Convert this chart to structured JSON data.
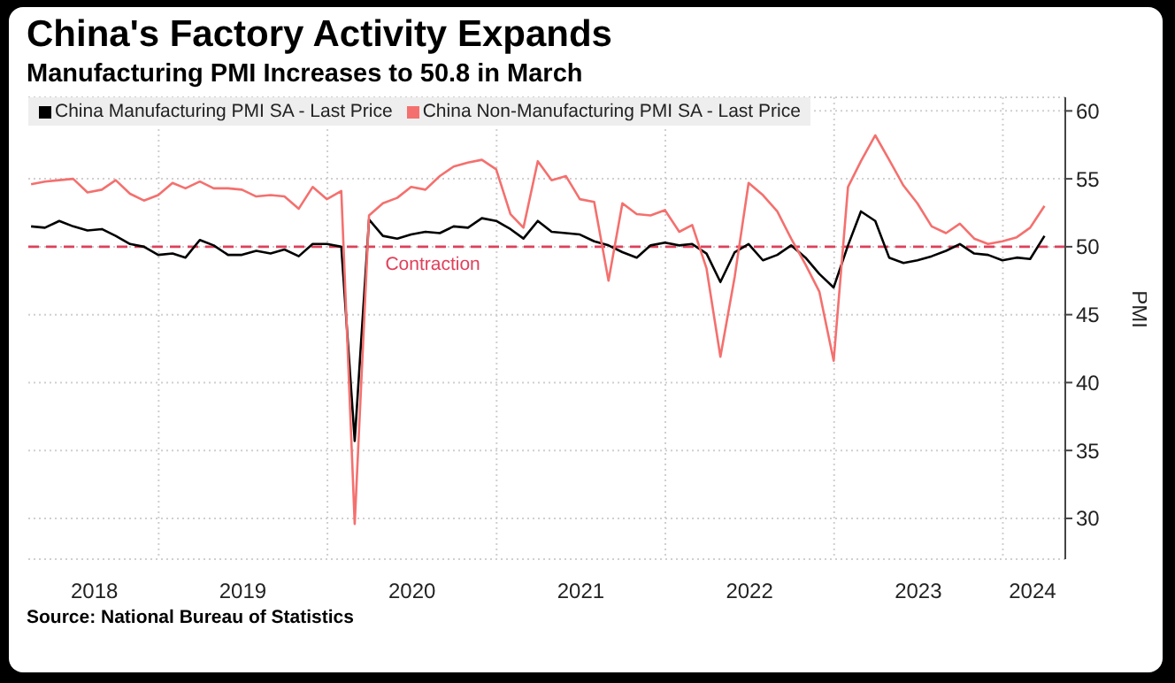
{
  "chart_data": {
    "type": "line",
    "title": "China's Factory Activity Expands",
    "subtitle": "Manufacturing PMI Increases to 50.8 in March",
    "ylabel": "PMI",
    "annotations": [
      "Source: National Bureau of Statistics"
    ],
    "x": [
      "2018-03-31",
      "2018-04-30",
      "2018-05-31",
      "2018-06-30",
      "2018-07-31",
      "2018-08-31",
      "2018-09-30",
      "2018-10-31",
      "2018-11-30",
      "2018-12-31",
      "2019-01-31",
      "2019-02-28",
      "2019-03-31",
      "2019-04-30",
      "2019-05-31",
      "2019-06-30",
      "2019-07-31",
      "2019-08-31",
      "2019-09-30",
      "2019-10-31",
      "2019-11-30",
      "2019-12-31",
      "2020-01-31",
      "2020-02-29",
      "2020-03-31",
      "2020-04-30",
      "2020-05-31",
      "2020-06-30",
      "2020-07-31",
      "2020-08-31",
      "2020-09-30",
      "2020-10-31",
      "2020-11-30",
      "2020-12-31",
      "2021-01-31",
      "2021-02-28",
      "2021-03-31",
      "2021-04-30",
      "2021-05-31",
      "2021-06-30",
      "2021-07-31",
      "2021-08-31",
      "2021-09-30",
      "2021-10-31",
      "2021-11-30",
      "2021-12-31",
      "2022-01-31",
      "2022-02-28",
      "2022-03-31",
      "2022-04-30",
      "2022-05-31",
      "2022-06-30",
      "2022-07-31",
      "2022-08-31",
      "2022-09-30",
      "2022-10-31",
      "2022-11-30",
      "2022-12-31",
      "2023-01-31",
      "2023-02-28",
      "2023-03-31",
      "2023-04-30",
      "2023-05-31",
      "2023-06-30",
      "2023-07-31",
      "2023-08-31",
      "2023-09-30",
      "2023-10-31",
      "2023-11-30",
      "2023-12-31",
      "2024-01-31",
      "2024-02-29",
      "2024-03-31"
    ],
    "series": [
      {
        "name": "China Manufacturing PMI SA - Last Price",
        "color": "#000000",
        "values": [
          51.5,
          51.4,
          51.9,
          51.5,
          51.2,
          51.3,
          50.8,
          50.2,
          50.0,
          49.4,
          49.5,
          49.2,
          50.5,
          50.1,
          49.4,
          49.4,
          49.7,
          49.5,
          49.8,
          49.3,
          50.2,
          50.2,
          50.0,
          35.7,
          52.0,
          50.8,
          50.6,
          50.9,
          51.1,
          51.0,
          51.5,
          51.4,
          52.1,
          51.9,
          51.3,
          50.6,
          51.9,
          51.1,
          51.0,
          50.9,
          50.4,
          50.1,
          49.6,
          49.2,
          50.1,
          50.3,
          50.1,
          50.2,
          49.5,
          47.4,
          49.6,
          50.2,
          49.0,
          49.4,
          50.1,
          49.2,
          48.0,
          47.0,
          50.1,
          52.6,
          51.9,
          49.2,
          48.8,
          49.0,
          49.3,
          49.7,
          50.2,
          49.5,
          49.4,
          49.0,
          49.2,
          49.1,
          50.8
        ]
      },
      {
        "name": "China Non-Manufacturing PMI SA - Last Price",
        "color": "#f4706e",
        "values": [
          54.6,
          54.8,
          54.9,
          55.0,
          54.0,
          54.2,
          54.9,
          53.9,
          53.4,
          53.8,
          54.7,
          54.3,
          54.8,
          54.3,
          54.3,
          54.2,
          53.7,
          53.8,
          53.7,
          52.8,
          54.4,
          53.5,
          54.1,
          29.6,
          52.3,
          53.2,
          53.6,
          54.4,
          54.2,
          55.2,
          55.9,
          56.2,
          56.4,
          55.7,
          52.4,
          51.4,
          56.3,
          54.9,
          55.2,
          53.5,
          53.3,
          47.5,
          53.2,
          52.4,
          52.3,
          52.7,
          51.1,
          51.6,
          48.4,
          41.9,
          47.8,
          54.7,
          53.8,
          52.6,
          50.6,
          48.7,
          46.7,
          41.6,
          54.4,
          56.3,
          58.2,
          56.4,
          54.5,
          53.2,
          51.5,
          51.0,
          51.7,
          50.6,
          50.2,
          50.4,
          50.7,
          51.4,
          53.0
        ]
      }
    ],
    "xlim": [
      "2018-03-25",
      "2024-05-15"
    ],
    "xticks": [
      {
        "value": "2018-08-15",
        "label": "2018"
      },
      {
        "value": "2019-01-01",
        "label": null
      },
      {
        "value": "2019-07-02",
        "label": "2019"
      },
      {
        "value": "2020-01-01",
        "label": null
      },
      {
        "value": "2020-07-02",
        "label": "2020"
      },
      {
        "value": "2021-01-01",
        "label": null
      },
      {
        "value": "2021-07-02",
        "label": "2021"
      },
      {
        "value": "2022-01-01",
        "label": null
      },
      {
        "value": "2022-07-02",
        "label": "2022"
      },
      {
        "value": "2023-01-01",
        "label": null
      },
      {
        "value": "2023-07-02",
        "label": "2023"
      },
      {
        "value": "2024-01-01",
        "label": null
      },
      {
        "value": "2024-03-05",
        "label": "2024"
      }
    ],
    "ylim": [
      27,
      61
    ],
    "yticks": [
      30,
      35,
      40,
      45,
      50,
      55,
      60
    ],
    "ref_lines": [
      {
        "axis": "y",
        "value": 50,
        "label": "Contraction",
        "color": "#e0405a",
        "line_style": "dashed"
      }
    ],
    "grid": true,
    "legend": "top left",
    "marker": "none",
    "line_style": "solid"
  }
}
